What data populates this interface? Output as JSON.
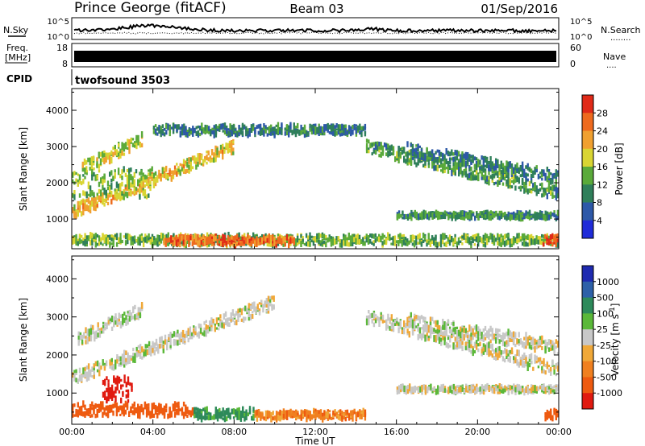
{
  "header": {
    "station": "Prince George (fitACF)",
    "beam": "Beam 03",
    "date": "01/Sep/2016"
  },
  "left_labels": {
    "nsky": "N.Sky",
    "freq_line1": "Freq.",
    "freq_line2": "[MHz]",
    "cpid": "CPID"
  },
  "right_labels": {
    "nsearch": "N.Search",
    "nsearch_dots": "........",
    "nave": "Nave",
    "nave_dots": "...."
  },
  "noise_panel": {
    "left_ticks": [
      "10^5",
      "10^0"
    ],
    "right_ticks": [
      "10^5",
      "10^0"
    ]
  },
  "freq_panel": {
    "left_ticks": [
      "18",
      "8"
    ],
    "right_ticks": [
      "60",
      "0"
    ]
  },
  "cpid_panel": {
    "program": "twofsound 3503"
  },
  "time_axis": {
    "label": "Time UT",
    "ticks": [
      "00:00",
      "04:00",
      "08:00",
      "12:00",
      "16:00",
      "20:00",
      "00:00"
    ]
  },
  "colors": {
    "power": [
      "#1f2bd8",
      "#2d58a8",
      "#2f7f5a",
      "#5aaa3a",
      "#d9d533",
      "#f0a030",
      "#ee6a1e",
      "#e02a18"
    ],
    "velocity": [
      "#e01a10",
      "#ee5a10",
      "#f08020",
      "#f0a838",
      "#c8c8c8",
      "#5ab838",
      "#2d8a5a",
      "#2d60a8",
      "#1e2ab0"
    ]
  },
  "chart_data": [
    {
      "type": "heatmap",
      "name": "power-panel",
      "ylabel": "Slant Range [km]",
      "xlabel": "",
      "xlim": [
        0,
        24
      ],
      "ylim": [
        180,
        4600
      ],
      "yticks": [
        "1000",
        "2000",
        "3000",
        "4000"
      ],
      "colorbar": {
        "label": "Power [dB]",
        "range": [
          0,
          32
        ],
        "ticks": [
          "4",
          "8",
          "12",
          "16",
          "20",
          "24",
          "28"
        ]
      },
      "features": [
        {
          "kind": "near-band",
          "t_start": 0.0,
          "t_end": 24.0,
          "range_km": 420,
          "width_km": 200,
          "value_db": 14
        },
        {
          "kind": "strong-band",
          "t_start": 4.5,
          "t_end": 11.0,
          "range_km": 400,
          "width_km": 180,
          "value_db": 26
        },
        {
          "kind": "rising-arc",
          "t_start": 0.0,
          "t_end": 8.0,
          "range_start_km": 1200,
          "range_end_km": 3000,
          "value_db": 20
        },
        {
          "kind": "upper-arc",
          "t_start": 0.5,
          "t_end": 3.5,
          "range_start_km": 2400,
          "range_end_km": 3200,
          "value_db": 17
        },
        {
          "kind": "mid-patch",
          "t_start": 0.0,
          "t_end": 4.0,
          "range_km": 2000,
          "width_km": 600,
          "value_db": 15
        },
        {
          "kind": "top-edge",
          "t_start": 4.0,
          "t_end": 14.5,
          "range_km": 3450,
          "width_km": 200,
          "value_db": 9
        },
        {
          "kind": "falling-arc",
          "t_start": 14.5,
          "t_end": 24.0,
          "range_start_km": 3000,
          "range_end_km": 1700,
          "value_db": 12
        },
        {
          "kind": "falling-arc-2",
          "t_start": 16.5,
          "t_end": 24.0,
          "range_start_km": 2900,
          "range_end_km": 2150,
          "value_db": 9
        },
        {
          "kind": "tail-band",
          "t_start": 16.0,
          "t_end": 24.0,
          "range_km": 1100,
          "width_km": 120,
          "value_db": 11
        },
        {
          "kind": "end-strong",
          "t_start": 23.2,
          "t_end": 24.0,
          "range_km": 420,
          "width_km": 200,
          "value_db": 28
        }
      ]
    },
    {
      "type": "heatmap",
      "name": "velocity-panel",
      "ylabel": "Slant Range [km]",
      "xlabel": "Time UT",
      "xlim": [
        0,
        24
      ],
      "ylim": [
        180,
        4600
      ],
      "yticks": [
        "1000",
        "2000",
        "3000",
        "4000"
      ],
      "colorbar": {
        "label": "Velocity [m s^-1]",
        "ticks": [
          "1000",
          "500",
          "100",
          "25",
          "-25",
          "-100",
          "-500",
          "-1000"
        ]
      },
      "features": [
        {
          "kind": "near-band",
          "t_start": 0.0,
          "t_end": 6.0,
          "range_km": 550,
          "width_km": 250,
          "value_ms": -200
        },
        {
          "kind": "near-band",
          "t_start": 6.0,
          "t_end": 9.0,
          "range_km": 450,
          "width_km": 200,
          "value_ms": 120
        },
        {
          "kind": "near-band",
          "t_start": 9.0,
          "t_end": 14.5,
          "range_km": 420,
          "width_km": 160,
          "value_ms": -80
        },
        {
          "kind": "rising-arc",
          "t_start": 0.0,
          "t_end": 10.0,
          "range_start_km": 1400,
          "range_end_km": 3400,
          "value_ms": 0
        },
        {
          "kind": "upper-arc",
          "t_start": 0.3,
          "t_end": 3.5,
          "range_start_km": 2400,
          "range_end_km": 3200,
          "value_ms": 0
        },
        {
          "kind": "early-red",
          "t_start": 1.5,
          "t_end": 3.0,
          "range_km": 1100,
          "width_km": 500,
          "value_ms": -900
        },
        {
          "kind": "falling-arc",
          "t_start": 14.5,
          "t_end": 24.0,
          "range_start_km": 3000,
          "range_end_km": 1600,
          "value_ms": 0
        },
        {
          "kind": "falling-arc-2",
          "t_start": 16.5,
          "t_end": 24.0,
          "range_start_km": 2900,
          "range_end_km": 2200,
          "value_ms": 0
        },
        {
          "kind": "tail-band",
          "t_start": 16.0,
          "t_end": 24.0,
          "range_km": 1100,
          "width_km": 120,
          "value_ms": 0
        },
        {
          "kind": "end-band",
          "t_start": 23.3,
          "t_end": 24.0,
          "range_km": 450,
          "width_km": 200,
          "value_ms": -300
        }
      ]
    }
  ]
}
